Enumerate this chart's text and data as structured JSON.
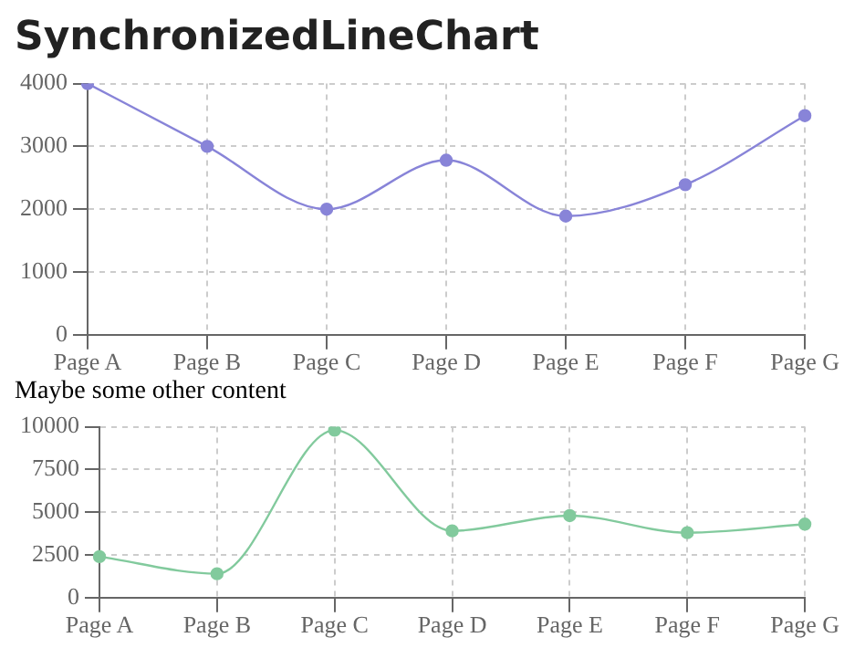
{
  "chart_data": [
    {
      "type": "line",
      "title": "SynchronizedLineChart",
      "categories": [
        "Page A",
        "Page B",
        "Page C",
        "Page D",
        "Page E",
        "Page F",
        "Page G"
      ],
      "series": [
        {
          "color": "#8884d8",
          "values": [
            4000,
            3000,
            2000,
            2780,
            1890,
            2390,
            3490
          ]
        }
      ],
      "ylim": [
        0,
        4000
      ],
      "yticks": [
        0,
        1000,
        2000,
        3000,
        4000
      ],
      "grid": true,
      "legend": false,
      "marker": "circle",
      "line_style": "solid"
    },
    {
      "type": "line",
      "title": "Maybe some other content",
      "categories": [
        "Page A",
        "Page B",
        "Page C",
        "Page D",
        "Page E",
        "Page F",
        "Page G"
      ],
      "series": [
        {
          "color": "#82ca9d",
          "values": [
            2400,
            1398,
            9800,
            3908,
            4800,
            3800,
            4300
          ]
        }
      ],
      "ylim": [
        0,
        10000
      ],
      "yticks": [
        0,
        2500,
        5000,
        7500,
        10000
      ],
      "grid": true,
      "legend": false,
      "marker": "circle",
      "line_style": "solid"
    }
  ]
}
